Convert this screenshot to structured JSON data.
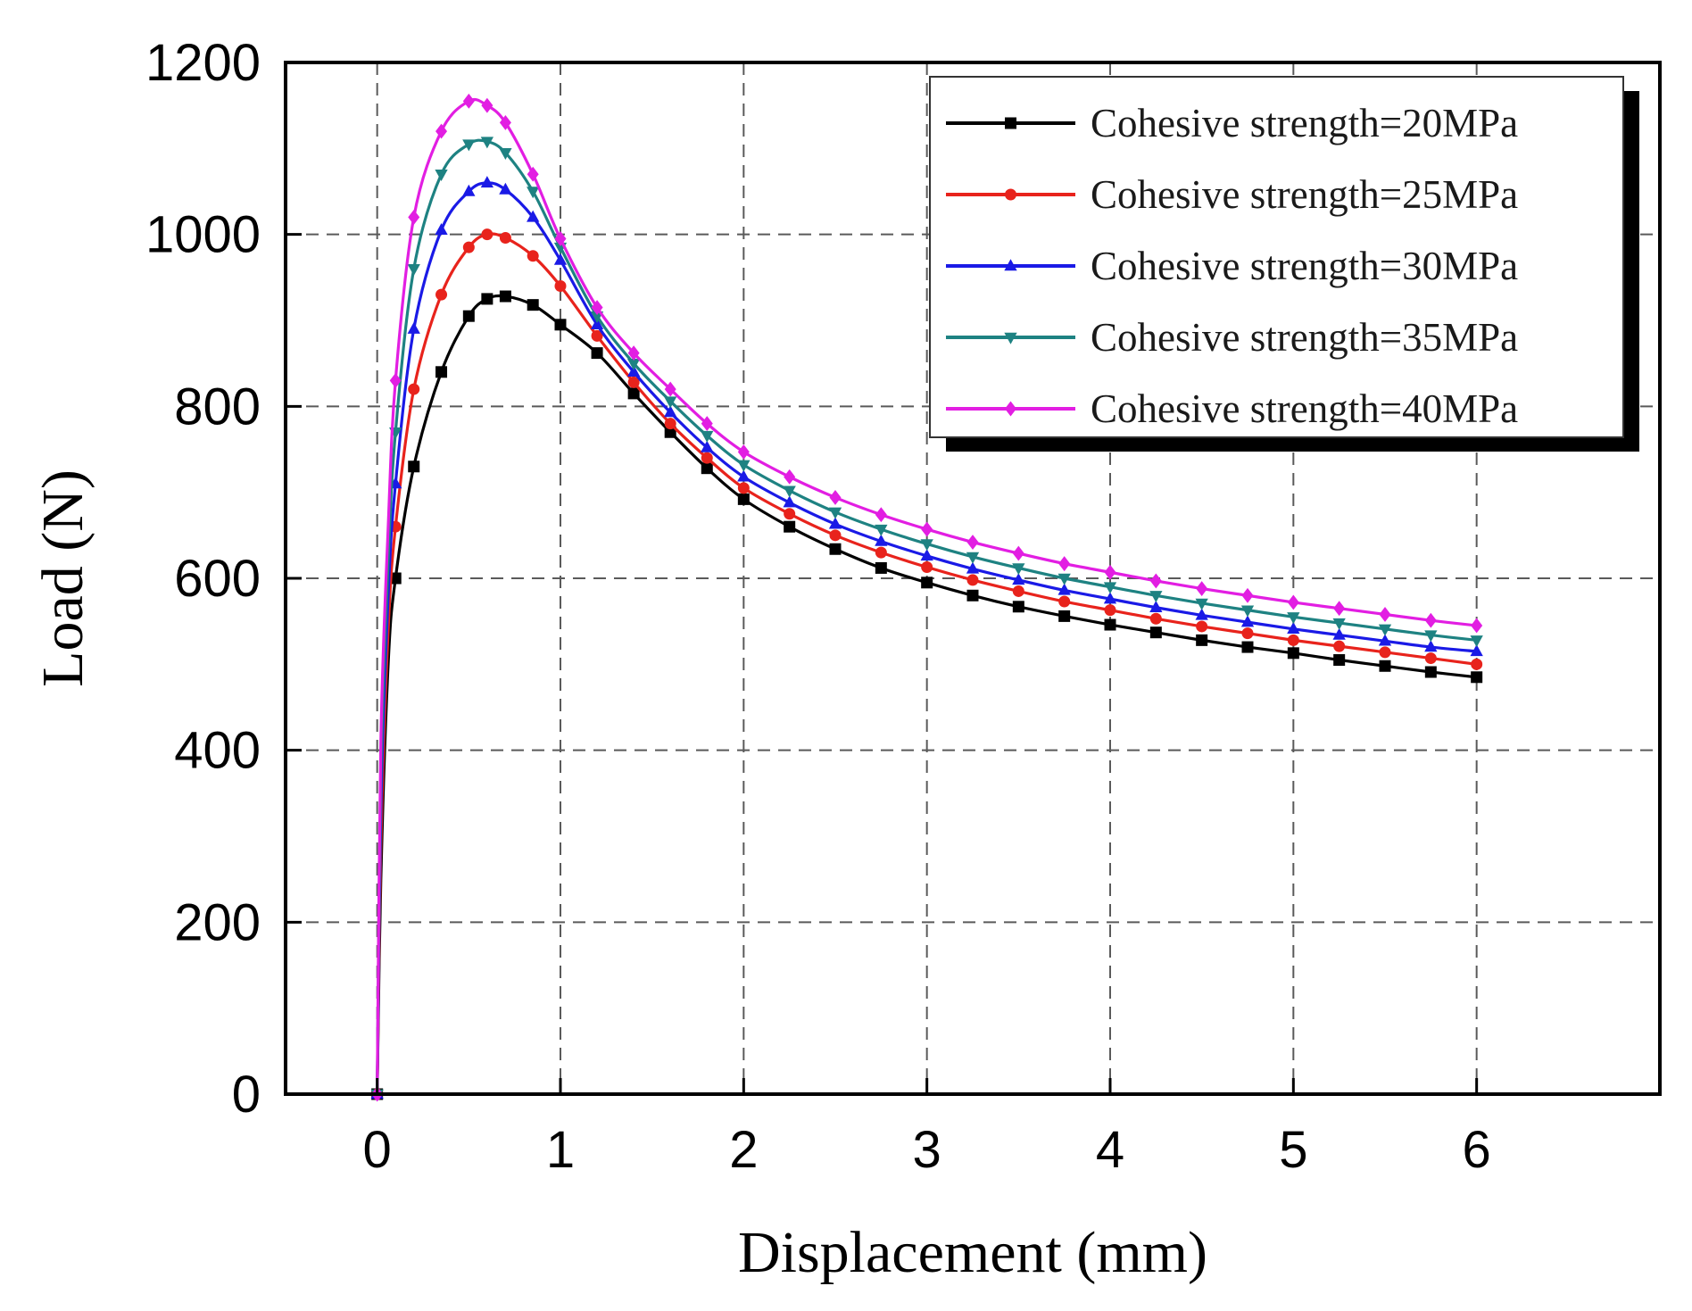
{
  "chart_data": {
    "type": "line",
    "title": "",
    "xlabel": "Displacement (mm)",
    "ylabel": "Load (N)",
    "xlim": [
      -0.5,
      7.0
    ],
    "ylim": [
      0,
      1200
    ],
    "xticks": [
      "0",
      "1",
      "2",
      "3",
      "4",
      "5",
      "6"
    ],
    "yticks": [
      "0",
      "200",
      "400",
      "600",
      "800",
      "1000",
      "1200"
    ],
    "grid": true,
    "legend_position": "top-right",
    "x": [
      0,
      0.02,
      0.06,
      0.1,
      0.2,
      0.35,
      0.5,
      0.6,
      0.7,
      0.85,
      1.0,
      1.2,
      1.4,
      1.6,
      1.8,
      2.0,
      2.25,
      2.5,
      2.75,
      3.0,
      3.25,
      3.5,
      3.75,
      4.0,
      4.25,
      4.5,
      4.75,
      5.0,
      5.25,
      5.5,
      5.75,
      6.0
    ],
    "series": [
      {
        "name": "Cohesive strength=20MPa",
        "color": "#000000",
        "marker": "square",
        "values": [
          0,
          250,
          500,
          600,
          730,
          840,
          905,
          925,
          928,
          918,
          895,
          862,
          815,
          770,
          728,
          692,
          660,
          634,
          612,
          595,
          580,
          567,
          556,
          546,
          537,
          528,
          520,
          513,
          505,
          498,
          491,
          485
        ]
      },
      {
        "name": "Cohesive strength=25MPa",
        "color": "#e8231c",
        "marker": "circle",
        "values": [
          0,
          290,
          540,
          660,
          820,
          930,
          985,
          1000,
          996,
          975,
          940,
          882,
          828,
          780,
          740,
          705,
          675,
          650,
          630,
          613,
          598,
          585,
          573,
          563,
          553,
          544,
          536,
          528,
          521,
          514,
          507,
          500
        ]
      },
      {
        "name": "Cohesive strength=30MPa",
        "color": "#1a1ae6",
        "marker": "triangle-up",
        "values": [
          0,
          330,
          580,
          710,
          890,
          1005,
          1050,
          1060,
          1052,
          1020,
          970,
          895,
          840,
          793,
          752,
          718,
          688,
          663,
          643,
          626,
          611,
          598,
          586,
          576,
          566,
          557,
          549,
          541,
          534,
          527,
          520,
          515
        ]
      },
      {
        "name": "Cohesive strength=35MPa",
        "color": "#1e8282",
        "marker": "triangle-down",
        "values": [
          0,
          370,
          620,
          770,
          960,
          1070,
          1105,
          1108,
          1095,
          1050,
          985,
          905,
          850,
          806,
          766,
          732,
          702,
          677,
          657,
          640,
          625,
          612,
          600,
          590,
          580,
          571,
          563,
          555,
          548,
          541,
          534,
          528
        ]
      },
      {
        "name": "Cohesive strength=40MPa",
        "color": "#e21ee2",
        "marker": "diamond",
        "values": [
          0,
          410,
          660,
          830,
          1020,
          1120,
          1155,
          1150,
          1130,
          1070,
          995,
          915,
          862,
          820,
          780,
          747,
          718,
          694,
          674,
          657,
          642,
          629,
          617,
          607,
          597,
          588,
          580,
          572,
          565,
          558,
          551,
          545
        ]
      }
    ]
  }
}
